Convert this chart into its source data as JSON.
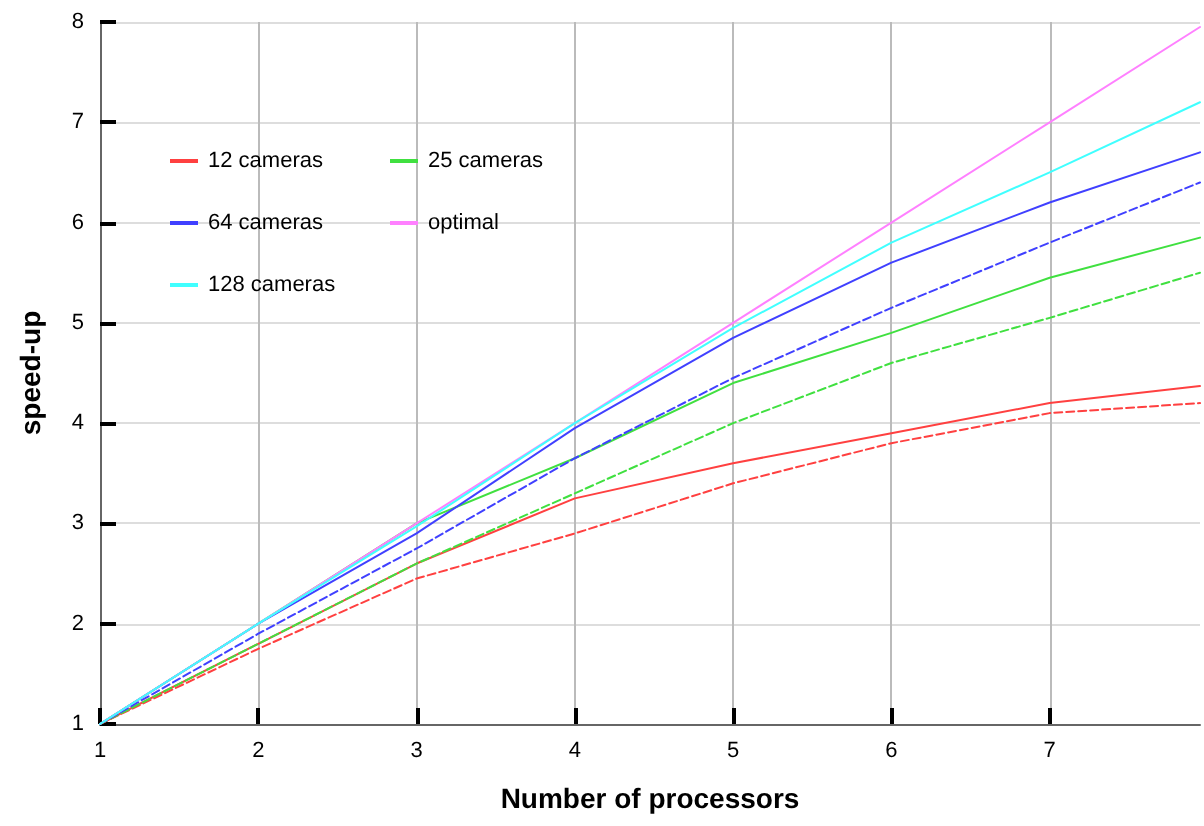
{
  "chart_data": {
    "type": "line",
    "xlabel": "Number of processors",
    "ylabel": "speed-up",
    "x": [
      1,
      2,
      3,
      4,
      5,
      6,
      7,
      7.95
    ],
    "xlim": [
      1,
      7.95
    ],
    "xticks": [
      1,
      2,
      3,
      4,
      5,
      6,
      7
    ],
    "ylim": [
      1,
      8
    ],
    "yticks": [
      1,
      2,
      3,
      4,
      5,
      6,
      7,
      8
    ],
    "grid": true,
    "legend": "top left",
    "marker": "none",
    "series": [
      {
        "name": "12 cameras",
        "color": "#ff4040",
        "line_style": "solid",
        "values": [
          1,
          1.8,
          2.6,
          3.25,
          3.6,
          3.9,
          4.2,
          4.37
        ]
      },
      {
        "color": "#ff4040",
        "line_style": "dashed",
        "values": [
          1,
          1.75,
          2.45,
          2.9,
          3.4,
          3.8,
          4.1,
          4.2
        ]
      },
      {
        "name": "25 cameras",
        "color": "#40e040",
        "line_style": "solid",
        "values": [
          1,
          2.0,
          3.0,
          3.65,
          4.4,
          4.9,
          5.45,
          5.85
        ]
      },
      {
        "color": "#40e040",
        "line_style": "dashed",
        "values": [
          1,
          1.8,
          2.6,
          3.3,
          4.0,
          4.6,
          5.05,
          5.5
        ]
      },
      {
        "name": "64 cameras",
        "color": "#4040ff",
        "line_style": "solid",
        "values": [
          1,
          2.0,
          2.9,
          3.95,
          4.85,
          5.6,
          6.2,
          6.7
        ]
      },
      {
        "color": "#4040ff",
        "line_style": "dashed",
        "values": [
          1,
          1.9,
          2.75,
          3.65,
          4.45,
          5.15,
          5.8,
          6.4
        ]
      },
      {
        "name": "optimal",
        "color": "#ff80ff",
        "line_style": "solid",
        "values": [
          1,
          2,
          3,
          4,
          5,
          6,
          7,
          7.95
        ]
      },
      {
        "name": "128 cameras",
        "color": "#40ffff",
        "line_style": "solid",
        "values": [
          1,
          2.0,
          2.97,
          4.0,
          4.95,
          5.8,
          6.5,
          7.2
        ]
      }
    ]
  }
}
